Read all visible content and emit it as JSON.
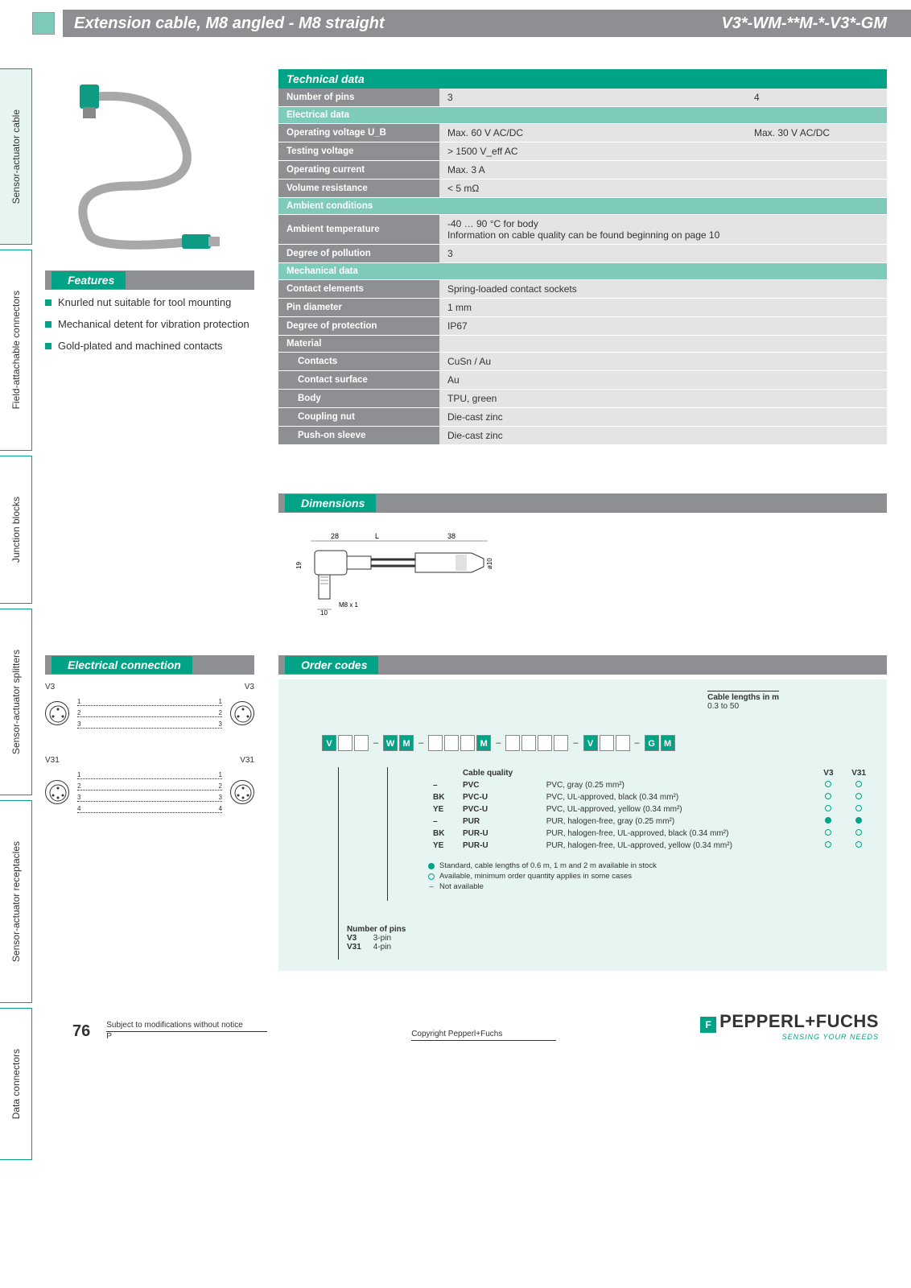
{
  "header": {
    "title": "Extension cable, M8 angled - M8 straight",
    "code": "V3*-WM-**M-*-V3*-GM"
  },
  "side_tabs": [
    "Sensor-actuator cable",
    "Field-attachable connectors",
    "Junction blocks",
    "Sensor-actuator splitters",
    "Sensor-actuator receptacles",
    "Data connectors"
  ],
  "features": {
    "title": "Features",
    "items": [
      "Knurled nut suitable for tool mounting",
      "Mechanical detent for vibration protection",
      "Gold-plated and machined contacts"
    ]
  },
  "tech": {
    "title": "Technical data",
    "rows": [
      {
        "type": "row",
        "label": "Number of pins",
        "v1": "3",
        "v2": "4"
      },
      {
        "type": "sub",
        "label": "Electrical data"
      },
      {
        "type": "row",
        "label": "Operating voltage U_B",
        "v1": "Max. 60 V AC/DC",
        "v2": "Max. 30 V AC/DC"
      },
      {
        "type": "row1",
        "label": "Testing voltage",
        "v": "> 1500 V_eff AC"
      },
      {
        "type": "row1",
        "label": "Operating current",
        "v": "Max. 3 A"
      },
      {
        "type": "row1",
        "label": "Volume resistance",
        "v": "< 5 mΩ"
      },
      {
        "type": "sub",
        "label": "Ambient conditions"
      },
      {
        "type": "row1",
        "label": "Ambient temperature",
        "v": "-40 … 90 °C for body\nInformation on cable quality can be found beginning on page 10"
      },
      {
        "type": "row1",
        "label": "Degree of pollution",
        "v": "3"
      },
      {
        "type": "sub",
        "label": "Mechanical data"
      },
      {
        "type": "row1",
        "label": "Contact elements",
        "v": "Spring-loaded contact sockets"
      },
      {
        "type": "row1",
        "label": "Pin diameter",
        "v": "1 mm"
      },
      {
        "type": "row1",
        "label": "Degree of protection",
        "v": "IP67"
      },
      {
        "type": "lblonly",
        "label": "Material"
      },
      {
        "type": "row1i",
        "label": "Contacts",
        "v": "CuSn / Au"
      },
      {
        "type": "row1i",
        "label": "Contact surface",
        "v": "Au"
      },
      {
        "type": "row1i",
        "label": "Body",
        "v": "TPU, green"
      },
      {
        "type": "row1i",
        "label": "Coupling nut",
        "v": "Die-cast zinc"
      },
      {
        "type": "row1i",
        "label": "Push-on sleeve",
        "v": "Die-cast zinc"
      }
    ]
  },
  "dimensions": {
    "title": "Dimensions",
    "labels": {
      "w1": "28",
      "L": "L",
      "w2": "38",
      "h": "19",
      "m8": "M8 x 1",
      "d10": "ø10",
      "base": "10"
    }
  },
  "electrical_connection": {
    "title": "Electrical connection",
    "groups": [
      {
        "name": "V3",
        "pins_l": [
          "4",
          "3",
          "1"
        ],
        "lines": [
          "1",
          "2",
          "3"
        ],
        "pins_r": [
          "4",
          "1",
          "3"
        ]
      },
      {
        "name": "V31",
        "pins_l": [
          "4",
          "3",
          "2",
          "1"
        ],
        "lines": [
          "1",
          "2",
          "3",
          "4"
        ],
        "pins_r": [
          "2",
          "1",
          "4",
          "3"
        ]
      }
    ]
  },
  "order": {
    "title": "Order codes",
    "lengths_label": "Cable lengths in m",
    "lengths_range": "0.3 to 50",
    "code_cells": [
      "V",
      ".",
      ".",
      "-",
      "W",
      "M",
      "-",
      ".",
      ".",
      ".",
      "M",
      "-",
      ".",
      ".",
      ".",
      ".",
      "-",
      "V",
      ".",
      ".",
      "-",
      "G",
      "M"
    ],
    "code_green": [
      0,
      4,
      5,
      10,
      17,
      21,
      22
    ],
    "cable_q_title": "Cable quality",
    "cable_q_cols": [
      "V3",
      "V31"
    ],
    "cable_q": [
      {
        "c": "–",
        "code": "PVC",
        "desc": "PVC, gray (0.25 mm²)",
        "v3": "o",
        "v31": "o"
      },
      {
        "c": "BK",
        "code": "PVC-U",
        "desc": "PVC, UL-approved, black (0.34 mm²)",
        "v3": "o",
        "v31": "o"
      },
      {
        "c": "YE",
        "code": "PVC-U",
        "desc": "PVC, UL-approved, yellow (0.34 mm²)",
        "v3": "o",
        "v31": "o"
      },
      {
        "c": "–",
        "code": "PUR",
        "desc": "PUR, halogen-free, gray (0.25 mm²)",
        "v3": "f",
        "v31": "f"
      },
      {
        "c": "BK",
        "code": "PUR-U",
        "desc": "PUR, halogen-free, UL-approved, black (0.34 mm²)",
        "v3": "o",
        "v31": "o"
      },
      {
        "c": "YE",
        "code": "PUR-U",
        "desc": "PUR, halogen-free, UL-approved, yellow (0.34 mm²)",
        "v3": "o",
        "v31": "o"
      }
    ],
    "legend": [
      {
        "sym": "f",
        "text": "Standard, cable lengths of 0.6 m, 1 m and 2 m available in stock"
      },
      {
        "sym": "o",
        "text": "Available, minimum order quantity applies in some cases"
      },
      {
        "sym": "-",
        "text": "Not available"
      }
    ],
    "pins_title": "Number of pins",
    "pins": [
      {
        "k": "V3",
        "v": "3-pin"
      },
      {
        "k": "V31",
        "v": "4-pin"
      }
    ]
  },
  "footer": {
    "page": "76",
    "note": "Subject to modifications without notice",
    "p": "P",
    "copy": "Copyright Pepperl+Fuchs",
    "brand": "PEPPERL+FUCHS",
    "tag": "SENSING YOUR NEEDS"
  },
  "colors": {
    "teal": "#00a386",
    "lt_teal": "#7fcbbb",
    "gray": "#8d8f92",
    "cell": "#e4e4e4",
    "bg_box": "#e6f5f1"
  }
}
